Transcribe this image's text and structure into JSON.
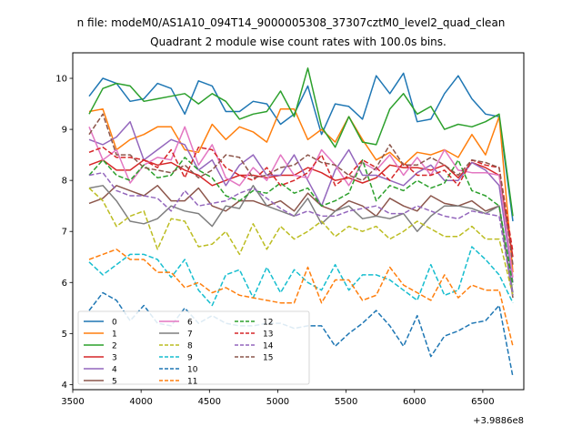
{
  "figure": {
    "suptitle": "n file: modeM0/AS1A10_094T14_9000005308_37307cztM0_level2_quad_clean",
    "title": "Quadrant 2 module wise count rates with 100.0s bins.",
    "x_offset_label": "+3.9886e8"
  },
  "chart_data": {
    "type": "line",
    "title": "Quadrant 2 module wise count rates with 100.0s bins.",
    "xlim": [
      3500,
      6800
    ],
    "ylim": [
      3.9,
      10.5
    ],
    "x_ticks": [
      3500,
      4000,
      4500,
      5000,
      5500,
      6000,
      6500
    ],
    "y_ticks": [
      4,
      5,
      6,
      7,
      8,
      9,
      10
    ],
    "x_offset": "+3.9886e8",
    "grid": false,
    "legend_placement": "lower-left",
    "legend_ncol": 3,
    "x": [
      3620,
      3720,
      3820,
      3920,
      4020,
      4120,
      4220,
      4320,
      4420,
      4520,
      4620,
      4720,
      4820,
      4920,
      5020,
      5120,
      5220,
      5320,
      5420,
      5520,
      5620,
      5720,
      5820,
      5920,
      6020,
      6120,
      6220,
      6320,
      6420,
      6520,
      6620,
      6720
    ],
    "series": [
      {
        "name": "0",
        "color": "#1f77b4",
        "dash": "solid",
        "values": [
          9.65,
          10.0,
          9.9,
          9.55,
          9.6,
          9.9,
          9.8,
          9.3,
          9.95,
          9.85,
          9.35,
          9.35,
          9.55,
          9.5,
          9.1,
          9.3,
          9.85,
          8.9,
          9.5,
          9.45,
          9.2,
          10.05,
          9.7,
          10.1,
          9.15,
          9.2,
          9.7,
          10.05,
          9.6,
          9.3,
          9.25,
          7.2
        ]
      },
      {
        "name": "1",
        "color": "#ff7f0e",
        "dash": "solid",
        "values": [
          9.35,
          9.4,
          8.6,
          8.8,
          8.9,
          9.05,
          9.05,
          8.6,
          8.55,
          9.1,
          8.8,
          9.05,
          8.95,
          8.75,
          9.4,
          9.4,
          8.8,
          9.0,
          8.75,
          9.25,
          8.8,
          8.4,
          8.55,
          8.3,
          8.55,
          8.5,
          8.6,
          8.45,
          8.9,
          8.5,
          9.25,
          6.2
        ]
      },
      {
        "name": "2",
        "color": "#2ca02c",
        "dash": "solid",
        "values": [
          9.3,
          9.8,
          9.9,
          9.85,
          9.55,
          9.6,
          9.65,
          9.7,
          9.5,
          9.7,
          9.55,
          9.2,
          9.3,
          9.35,
          9.75,
          9.25,
          10.2,
          9.05,
          8.65,
          9.25,
          8.75,
          8.7,
          9.4,
          9.7,
          9.3,
          9.45,
          9.0,
          9.1,
          9.05,
          9.15,
          9.3,
          7.3
        ]
      },
      {
        "name": "3",
        "color": "#d62728",
        "dash": "solid",
        "values": [
          8.3,
          8.4,
          8.2,
          8.2,
          8.4,
          8.3,
          8.35,
          8.2,
          8.1,
          7.9,
          8.0,
          8.1,
          8.1,
          8.05,
          8.1,
          8.1,
          8.25,
          8.15,
          8.0,
          8.05,
          7.95,
          8.05,
          8.3,
          8.25,
          8.25,
          8.2,
          8.3,
          8.05,
          8.35,
          8.25,
          8.1,
          6.5
        ]
      },
      {
        "name": "4",
        "color": "#9467bd",
        "dash": "solid",
        "values": [
          8.8,
          8.7,
          8.85,
          9.15,
          8.4,
          8.6,
          8.8,
          8.7,
          8.2,
          8.4,
          7.9,
          8.3,
          8.5,
          8.1,
          8.1,
          8.5,
          8.0,
          7.5,
          8.2,
          8.6,
          8.1,
          8.1,
          8.0,
          7.9,
          8.15,
          8.3,
          8.0,
          8.0,
          8.35,
          8.2,
          7.9,
          6.0
        ]
      },
      {
        "name": "5",
        "color": "#8c564b",
        "dash": "solid",
        "values": [
          7.55,
          7.65,
          7.9,
          7.8,
          7.7,
          7.9,
          7.6,
          7.6,
          7.85,
          7.5,
          7.4,
          7.6,
          7.6,
          7.5,
          7.6,
          7.4,
          7.75,
          7.5,
          7.4,
          7.6,
          7.5,
          7.3,
          7.65,
          7.5,
          7.4,
          7.7,
          7.55,
          7.5,
          7.6,
          7.4,
          7.5,
          5.7
        ]
      },
      {
        "name": "6",
        "color": "#e377c2",
        "dash": "solid",
        "values": [
          9.05,
          8.4,
          8.6,
          7.95,
          8.3,
          8.45,
          8.4,
          9.05,
          8.3,
          8.7,
          8.05,
          7.9,
          8.25,
          8.0,
          8.5,
          8.1,
          8.05,
          8.6,
          8.3,
          7.9,
          8.35,
          8.2,
          8.5,
          8.1,
          8.45,
          8.1,
          8.6,
          8.2,
          8.15,
          8.15,
          8.1,
          6.1
        ]
      },
      {
        "name": "7",
        "color": "#7f7f7f",
        "dash": "solid",
        "values": [
          7.85,
          7.9,
          7.6,
          7.2,
          7.15,
          7.25,
          7.5,
          7.4,
          7.35,
          7.1,
          7.5,
          7.45,
          7.9,
          7.5,
          7.4,
          7.3,
          7.65,
          7.15,
          7.4,
          7.5,
          7.25,
          7.3,
          7.25,
          7.35,
          7.0,
          7.3,
          7.5,
          7.5,
          7.45,
          7.35,
          7.5,
          5.8
        ]
      },
      {
        "name": "8",
        "color": "#bcbd22",
        "dash": "dash",
        "values": [
          7.85,
          7.6,
          7.1,
          7.3,
          7.4,
          6.65,
          7.25,
          7.2,
          6.7,
          6.75,
          7.0,
          6.55,
          7.15,
          6.65,
          7.1,
          6.85,
          7.0,
          7.2,
          6.9,
          7.1,
          7.0,
          7.1,
          6.85,
          7.0,
          7.2,
          7.05,
          6.9,
          6.9,
          7.1,
          6.85,
          6.85,
          5.75
        ]
      },
      {
        "name": "9",
        "color": "#17becf",
        "dash": "dash",
        "values": [
          6.4,
          6.15,
          6.35,
          6.55,
          6.55,
          6.45,
          6.1,
          6.45,
          5.85,
          5.55,
          6.15,
          6.25,
          5.7,
          6.3,
          5.8,
          6.25,
          6.0,
          5.85,
          6.35,
          5.85,
          6.15,
          6.15,
          6.05,
          5.85,
          5.65,
          6.35,
          5.75,
          5.85,
          6.7,
          6.45,
          6.15,
          5.6
        ]
      },
      {
        "name": "10",
        "color": "#1f77b4",
        "dash": "dash",
        "values": [
          5.45,
          5.8,
          5.65,
          5.25,
          5.55,
          5.2,
          5.15,
          5.5,
          5.2,
          5.35,
          5.2,
          5.15,
          5.15,
          5.2,
          5.2,
          5.1,
          5.15,
          5.15,
          4.75,
          5.0,
          5.2,
          5.45,
          5.15,
          4.75,
          5.35,
          4.55,
          4.95,
          5.05,
          5.2,
          5.25,
          5.55,
          4.15
        ]
      },
      {
        "name": "11",
        "color": "#ff7f0e",
        "dash": "dash",
        "values": [
          6.45,
          6.55,
          6.65,
          6.45,
          6.45,
          6.2,
          6.2,
          5.9,
          6.0,
          5.8,
          5.9,
          5.75,
          5.7,
          5.65,
          5.6,
          5.6,
          6.3,
          5.6,
          6.05,
          6.05,
          5.65,
          5.75,
          6.3,
          5.95,
          5.8,
          5.65,
          6.15,
          5.7,
          5.95,
          5.85,
          5.85,
          4.75
        ]
      },
      {
        "name": "12",
        "color": "#2ca02c",
        "dash": "dash",
        "values": [
          8.1,
          8.4,
          8.1,
          8.0,
          8.3,
          8.05,
          8.1,
          8.45,
          8.2,
          8.05,
          7.7,
          7.6,
          7.8,
          7.75,
          7.95,
          7.75,
          7.85,
          7.5,
          7.6,
          7.75,
          8.4,
          7.6,
          7.9,
          7.8,
          8.0,
          7.85,
          7.95,
          8.4,
          7.8,
          7.7,
          7.5,
          5.95
        ]
      },
      {
        "name": "13",
        "color": "#d62728",
        "dash": "dash",
        "values": [
          8.55,
          8.65,
          8.45,
          8.45,
          8.4,
          8.25,
          8.6,
          8.05,
          8.65,
          8.6,
          8.25,
          8.1,
          8.0,
          8.25,
          7.9,
          8.0,
          8.15,
          8.5,
          7.9,
          8.1,
          8.4,
          8.25,
          8.0,
          8.35,
          8.1,
          8.1,
          8.2,
          7.9,
          8.4,
          8.3,
          8.25,
          6.6
        ]
      },
      {
        "name": "14",
        "color": "#9467bd",
        "dash": "dash",
        "values": [
          8.1,
          8.15,
          7.8,
          7.7,
          7.7,
          7.65,
          7.4,
          7.8,
          7.5,
          7.55,
          7.6,
          7.75,
          7.85,
          7.65,
          7.45,
          7.3,
          7.4,
          7.3,
          7.3,
          7.4,
          7.45,
          7.5,
          7.35,
          7.35,
          7.5,
          7.4,
          7.3,
          7.25,
          7.4,
          7.35,
          7.3,
          5.75
        ]
      },
      {
        "name": "15",
        "color": "#8c564b",
        "dash": "dash",
        "values": [
          8.9,
          9.3,
          8.5,
          8.5,
          8.25,
          8.2,
          8.15,
          8.3,
          8.05,
          8.2,
          8.5,
          8.45,
          8.05,
          8.1,
          8.25,
          8.3,
          8.5,
          8.35,
          8.3,
          8.1,
          8.0,
          8.25,
          8.7,
          8.3,
          8.3,
          8.45,
          8.3,
          8.1,
          8.4,
          8.35,
          8.25,
          6.35
        ]
      }
    ]
  }
}
